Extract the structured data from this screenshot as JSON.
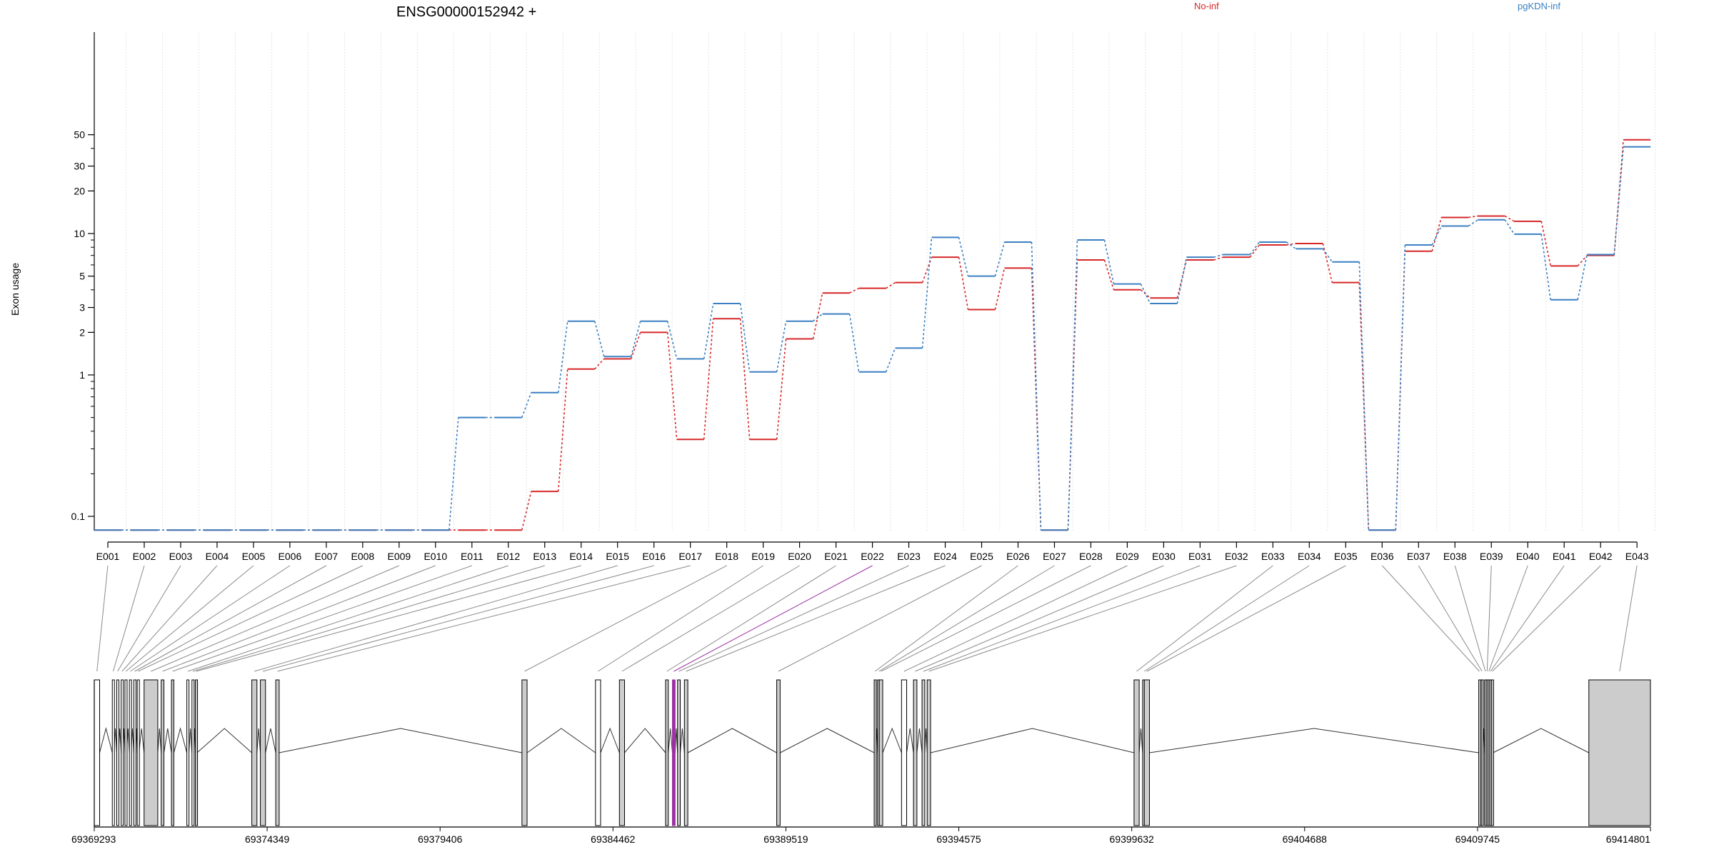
{
  "chart_data": {
    "type": "line",
    "title": "ENSG00000152942 +",
    "ylabel": "Exon usage",
    "y_scale": "log",
    "y_ticks": [
      "0.1",
      "1",
      "2",
      "3",
      "5",
      "10",
      "20",
      "30",
      "50"
    ],
    "grid": "vertical",
    "legend_placement": "top",
    "series": [
      {
        "name": "No-inf",
        "color": "#d62728",
        "values": [
          0.08,
          0.08,
          0.08,
          0.08,
          0.08,
          0.08,
          0.08,
          0.08,
          0.08,
          0.08,
          0.08,
          0.08,
          0.15,
          1.1,
          1.3,
          2.0,
          0.35,
          2.5,
          0.35,
          1.8,
          3.8,
          4.1,
          4.5,
          6.8,
          2.9,
          5.7,
          0.08,
          6.5,
          4.0,
          3.5,
          6.5,
          6.8,
          8.3,
          8.5,
          4.5,
          0.08,
          7.5,
          13.0,
          13.3,
          12.2,
          5.9,
          7.0,
          46.0
        ]
      },
      {
        "name": "pgKDN-inf",
        "color": "#3a7fc1",
        "values": [
          0.08,
          0.08,
          0.08,
          0.08,
          0.08,
          0.08,
          0.08,
          0.08,
          0.08,
          0.08,
          0.5,
          0.5,
          0.75,
          2.4,
          1.35,
          2.4,
          1.3,
          3.2,
          1.05,
          2.4,
          2.7,
          1.05,
          1.55,
          9.4,
          5.0,
          8.7,
          0.08,
          9.0,
          4.4,
          3.2,
          6.8,
          7.1,
          8.7,
          7.8,
          6.3,
          0.08,
          8.3,
          11.3,
          12.5,
          9.9,
          3.4,
          7.1,
          41.0
        ]
      }
    ],
    "exons": [
      "E001",
      "E002",
      "E003",
      "E004",
      "E005",
      "E006",
      "E007",
      "E008",
      "E009",
      "E010",
      "E011",
      "E012",
      "E013",
      "E014",
      "E015",
      "E016",
      "E017",
      "E018",
      "E019",
      "E020",
      "E021",
      "E022",
      "E023",
      "E024",
      "E025",
      "E026",
      "E027",
      "E028",
      "E029",
      "E030",
      "E031",
      "E032",
      "E033",
      "E034",
      "E035",
      "E036",
      "E037",
      "E038",
      "E039",
      "E040",
      "E041",
      "E042",
      "E043"
    ],
    "highlight_exon": "E022",
    "highlight_color": "#9b30a0",
    "genomic_axis": {
      "range": [
        69369293,
        69414801
      ],
      "ticks": [
        "69369293",
        "69374349",
        "69379406",
        "69384462",
        "69389519",
        "69394575",
        "69399632",
        "69404688",
        "69409745",
        "69414801"
      ]
    },
    "exon_coords": [
      [
        69369293,
        69369450
      ],
      [
        69369820,
        69369870
      ],
      [
        69369950,
        69370000
      ],
      [
        69370080,
        69370130
      ],
      [
        69370190,
        69370240
      ],
      [
        69370320,
        69370370
      ],
      [
        69370450,
        69370500
      ],
      [
        69370550,
        69370600
      ],
      [
        69370750,
        69371150
      ],
      [
        69371250,
        69371330
      ],
      [
        69371550,
        69371620
      ],
      [
        69372000,
        69372060
      ],
      [
        69372150,
        69372200
      ],
      [
        69372250,
        69372300
      ],
      [
        69373900,
        69374050
      ],
      [
        69374150,
        69374300
      ],
      [
        69374600,
        69374700
      ],
      [
        69381800,
        69381950
      ],
      [
        69383950,
        69384100
      ],
      [
        69384650,
        69384800
      ],
      [
        69386000,
        69386080
      ],
      [
        69386200,
        69386280
      ],
      [
        69386350,
        69386430
      ],
      [
        69386550,
        69386650
      ],
      [
        69389250,
        69389350
      ],
      [
        69392100,
        69392150
      ],
      [
        69392200,
        69392280
      ],
      [
        69392250,
        69392350
      ],
      [
        69392900,
        69393050
      ],
      [
        69393250,
        69393350
      ],
      [
        69393500,
        69393580
      ],
      [
        69393650,
        69393750
      ],
      [
        69399700,
        69399850
      ],
      [
        69399950,
        69400050
      ],
      [
        69400000,
        69400150
      ],
      [
        69409780,
        69409820
      ],
      [
        69409850,
        69409900
      ],
      [
        69409950,
        69410000
      ],
      [
        69410000,
        69410050
      ],
      [
        69410050,
        69410100
      ],
      [
        69410100,
        69410150
      ],
      [
        69410150,
        69410200
      ],
      [
        69413000,
        69414801
      ]
    ],
    "exon_fill": [
      "#ffffff",
      "#ffffff",
      "#ffffff",
      "#ffffff",
      "#ffffff",
      "#ffffff",
      "#ffffff",
      "#ffffff",
      "#cccccc",
      "#cccccc",
      "#cccccc",
      "#ffffff",
      "#ffffff",
      "#cccccc",
      "#cccccc",
      "#cccccc",
      "#cccccc",
      "#cccccc",
      "#ffffff",
      "#cccccc",
      "#cccccc",
      "#cccccc",
      "#cccccc",
      "#cccccc",
      "#cccccc",
      "#cccccc",
      "#cccccc",
      "#cccccc",
      "#ffffff",
      "#cccccc",
      "#cccccc",
      "#cccccc",
      "#cccccc",
      "#cccccc",
      "#cccccc",
      "#cccccc",
      "#cccccc",
      "#cccccc",
      "#cccccc",
      "#cccccc",
      "#cccccc",
      "#cccccc",
      "#cccccc"
    ]
  }
}
